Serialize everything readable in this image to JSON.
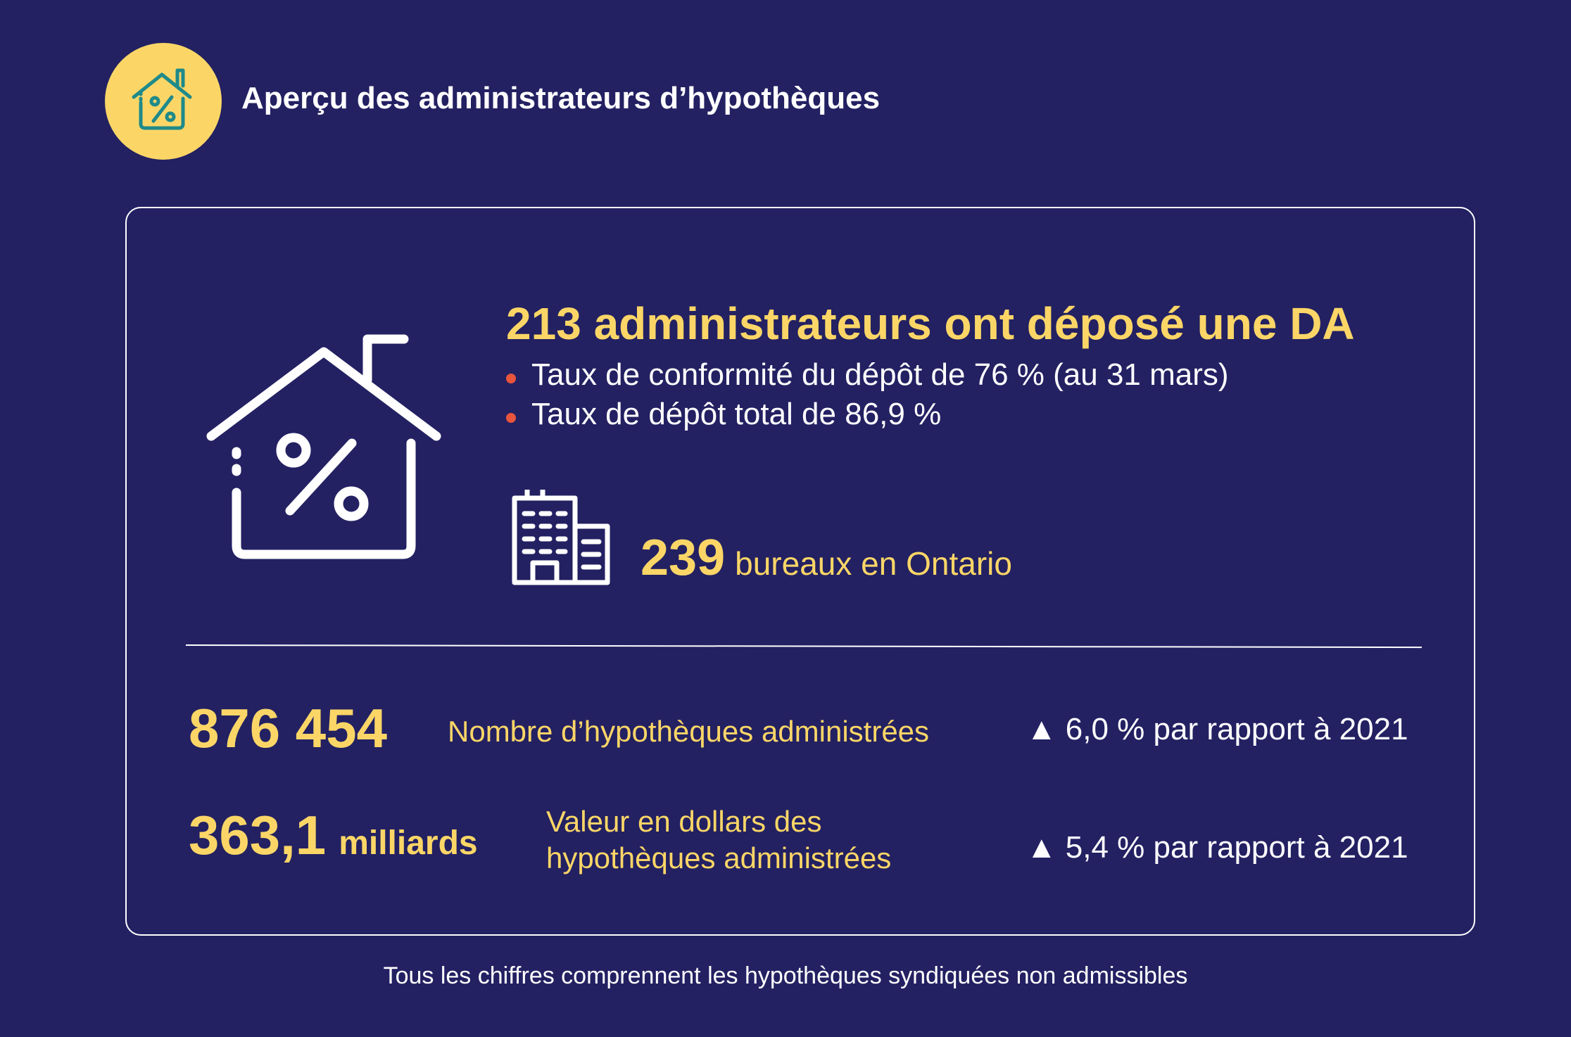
{
  "header": {
    "title": "Aperçu des administrateurs d’hypothèques",
    "icon": "house-percent-icon"
  },
  "colors": {
    "background": "#232162",
    "accent": "#fbd667",
    "bullet": "#e8553d",
    "text": "#ffffff"
  },
  "summary": {
    "headline": "213 administrateurs ont déposé une DA",
    "bullets": [
      "Taux de conformité du dépôt de 76 % (au 31 mars)",
      "Taux de dépôt total de 86,9 %"
    ],
    "offices_count": "239",
    "offices_label": "bureaux en Ontario"
  },
  "stats": [
    {
      "value": "876 454",
      "unit": "",
      "label": "Nombre d’hypothèques administrées",
      "change": "▲ 6,0 % par rapport à 2021"
    },
    {
      "value": "363,1",
      "unit": "milliards",
      "label_line1": "Valeur en dollars des",
      "label_line2": "hypothèques administrées",
      "change": "▲ 5,4 % par rapport à 2021"
    }
  ],
  "footer": "Tous les chiffres comprennent les hypothèques syndiquées non admissibles"
}
